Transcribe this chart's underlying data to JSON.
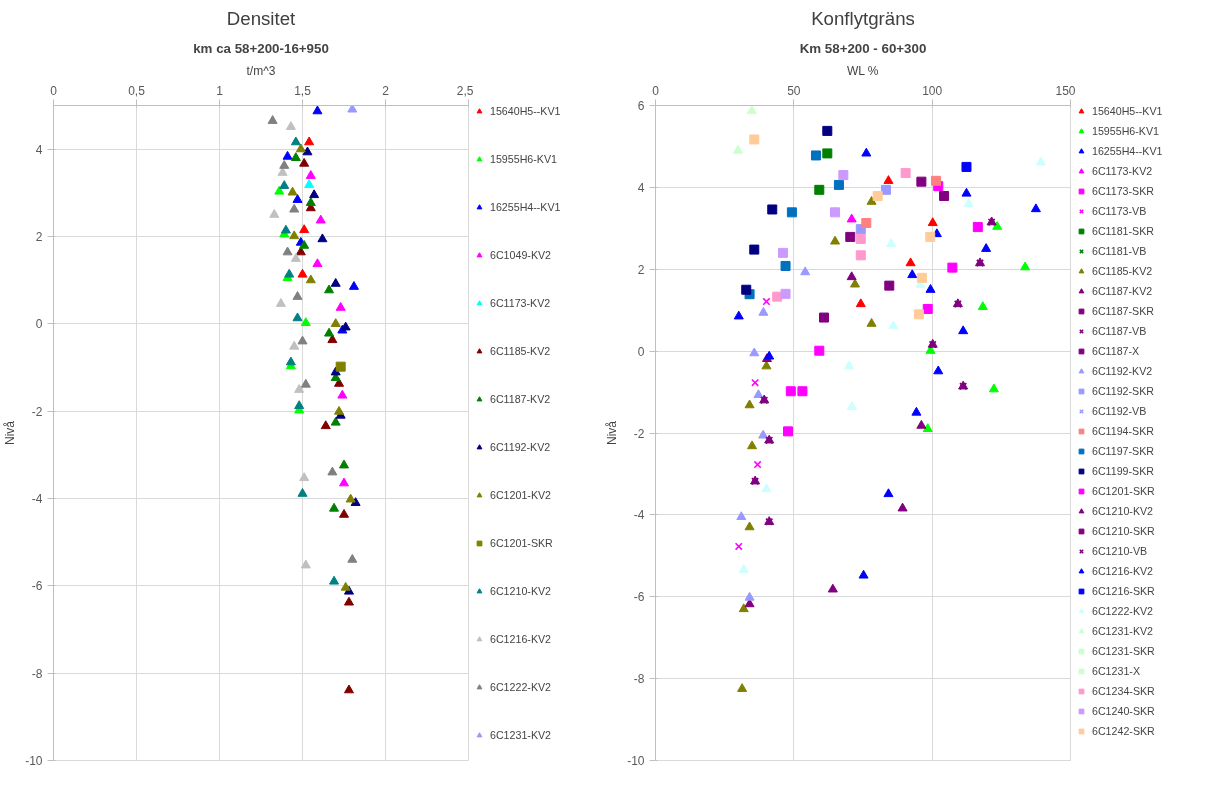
{
  "chart_data": [
    {
      "type": "scatter",
      "title": "Densitet",
      "subtitle": "km ca 58+200-16+950",
      "xlabel": "t/m^3",
      "ylabel": "Nivå",
      "xlim": [
        0,
        2.5
      ],
      "xticks": [
        0,
        {
          "value": 0.5,
          "label": "0,5"
        },
        1,
        {
          "value": 1.5,
          "label": "1,5"
        },
        2,
        {
          "value": 2.5,
          "label": "2,5"
        }
      ],
      "ylim": [
        -10,
        5
      ],
      "yticks": [
        -10,
        -8,
        -6,
        -4,
        -2,
        0,
        2,
        4
      ],
      "grid": true,
      "legend": "right",
      "marker": "triangle",
      "series": [
        {
          "name": "15640H5--KV1",
          "color": "#ff0000",
          "x": [
            1.54,
            1.51,
            1.5
          ],
          "values": [
            4.16,
            2.15,
            1.13
          ]
        },
        {
          "name": "15955H6-KV1",
          "color": "#00ff00",
          "x": [
            1.36,
            1.39,
            1.41,
            1.52,
            1.43,
            1.48
          ],
          "values": [
            3.03,
            2.05,
            1.05,
            0.02,
            -0.97,
            -1.98
          ]
        },
        {
          "name": "16255H4--KV1",
          "color": "#0000ff",
          "x": [
            1.59,
            1.41,
            1.47,
            1.49,
            1.81,
            1.74
          ],
          "values": [
            4.87,
            3.83,
            2.84,
            1.86,
            0.85,
            -0.15
          ]
        },
        {
          "name": "6C1049-KV2",
          "color": "#ff00ff",
          "x": [
            1.55,
            1.61,
            1.59,
            1.73,
            1.74,
            1.75
          ],
          "values": [
            3.39,
            2.37,
            1.37,
            0.37,
            -1.64,
            -3.65
          ]
        },
        {
          "name": "6C1173-KV2",
          "color": "#00ffff",
          "x": [
            1.54
          ],
          "values": [
            3.18
          ]
        },
        {
          "name": "6C1185-KV2",
          "color": "#800000",
          "x": [
            1.51,
            1.55,
            1.49,
            1.68,
            1.72,
            1.64,
            1.75,
            1.78,
            1.78
          ],
          "values": [
            3.67,
            2.65,
            1.64,
            -0.37,
            -1.37,
            -2.34,
            -4.37,
            -6.38,
            -8.39
          ]
        },
        {
          "name": "6C1187-KV2",
          "color": "#008000",
          "x": [
            1.46,
            1.55,
            1.51,
            1.66,
            1.66,
            1.7,
            1.7,
            1.75,
            1.69
          ],
          "values": [
            3.8,
            2.77,
            1.79,
            0.77,
            -0.22,
            -1.24,
            -2.26,
            -3.24,
            -4.23
          ]
        },
        {
          "name": "6C1192-KV2",
          "color": "#000080",
          "x": [
            1.53,
            1.57,
            1.62,
            1.7,
            1.76,
            1.7,
            1.73,
            1.82,
            1.78
          ],
          "values": [
            3.93,
            2.95,
            1.94,
            0.92,
            -0.08,
            -1.11,
            -2.1,
            -4.1,
            -6.13
          ]
        },
        {
          "name": "6C1201-KV2",
          "color": "#808000",
          "x": [
            1.49,
            1.44,
            1.45,
            1.55,
            1.7,
            1.72,
            1.79,
            1.76
          ],
          "values": [
            4.0,
            3.01,
            2.01,
            1.0,
            0.0,
            -2.01,
            -4.02,
            -6.04
          ]
        },
        {
          "name": "6C1201-SKR",
          "color": "#808000",
          "marker": "square",
          "x": [
            1.73
          ],
          "values": [
            -0.98
          ]
        },
        {
          "name": "6C1210-KV2",
          "color": "#008080",
          "x": [
            1.46,
            1.39,
            1.4,
            1.42,
            1.47,
            1.43,
            1.48,
            1.5,
            1.69
          ],
          "values": [
            4.16,
            3.16,
            2.14,
            1.13,
            0.13,
            -0.88,
            -1.88,
            -3.89,
            -5.9
          ]
        },
        {
          "name": "6C1216-KV2",
          "color": "#c0c0c0",
          "x": [
            1.43,
            1.38,
            1.33,
            1.46,
            1.37,
            1.45,
            1.48,
            1.51,
            1.52
          ],
          "values": [
            4.51,
            3.46,
            2.5,
            1.49,
            0.46,
            -0.52,
            -1.51,
            -3.53,
            -5.53
          ]
        },
        {
          "name": "6C1222-KV2",
          "color": "#808080",
          "x": [
            1.32,
            1.39,
            1.45,
            1.41,
            1.47,
            1.5,
            1.52,
            1.68,
            1.8
          ],
          "values": [
            4.65,
            3.62,
            2.62,
            1.64,
            0.62,
            -0.4,
            -1.39,
            -3.4,
            -5.4
          ]
        },
        {
          "name": "6C1231-KV2",
          "color": "#9999ff",
          "x": [
            1.8
          ],
          "values": [
            4.91
          ]
        }
      ]
    },
    {
      "type": "scatter",
      "title": "Konflytgräns",
      "subtitle": "Km 58+200 - 60+300",
      "xlabel": "WL %",
      "ylabel": "Nivå",
      "xlim": [
        0,
        150
      ],
      "xticks": [
        0,
        50,
        100,
        150
      ],
      "ylim": [
        -10,
        6
      ],
      "yticks": [
        -10,
        -8,
        -6,
        -4,
        -2,
        0,
        2,
        4,
        6
      ],
      "grid": true,
      "legend": "right",
      "marker": "triangle",
      "series": [
        {
          "name": "15640H5--KV1",
          "color": "#ff0000",
          "x": [
            84.2,
            100.2,
            92.2,
            74.2
          ],
          "values": [
            4.16,
            3.13,
            2.15,
            1.15
          ]
        },
        {
          "name": "15955H6-KV1",
          "color": "#00ff00",
          "x": [
            123.5,
            133.6,
            118.3,
            99.4,
            122.3,
            98.4
          ],
          "values": [
            3.04,
            2.05,
            1.08,
            0.01,
            -0.93,
            -1.9
          ]
        },
        {
          "name": "16255H4--KV1",
          "color": "#0000ff",
          "x": [
            76.2,
            112.4,
            137.5,
            119.5,
            111.2
          ],
          "values": [
            4.83,
            3.85,
            3.47,
            2.5,
            0.49
          ]
        },
        {
          "name": "6C1173-KV2",
          "color": "#ff00ff",
          "x": [
            70.9
          ],
          "values": [
            3.22
          ]
        },
        {
          "name": "6C1173-SKR",
          "color": "#ff00ff",
          "marker": "square",
          "x": [
            102.2,
            116.5,
            107.3,
            98.4
          ],
          "values": [
            4.03,
            3.03,
            2.04,
            1.03
          ]
        },
        {
          "name": "6C1173-VB",
          "color": "#ff00ff",
          "marker": "cross",
          "x": [
            40.1,
            36.0,
            36.9,
            30.1
          ],
          "values": [
            1.21,
            -0.77,
            -2.77,
            -4.77
          ]
        },
        {
          "name": "6C1181-SKR",
          "color": "#008000",
          "marker": "square",
          "x": [
            62.1,
            59.2
          ],
          "values": [
            4.83,
            3.94
          ]
        },
        {
          "name": "6C1181-VB",
          "color": "#008000",
          "marker": "cross"
        },
        {
          "name": "6C1185-KV2",
          "color": "#808000",
          "x": [
            64.9,
            78.1,
            72.1,
            78.1,
            40.1,
            34.0,
            34.9,
            34.0,
            31.9,
            31.3
          ],
          "values": [
            2.68,
            3.65,
            1.63,
            0.67,
            -0.37,
            -1.32,
            -2.32,
            -4.3,
            -6.3,
            -8.25
          ]
        },
        {
          "name": "6C1187-KV2",
          "color": "#800080",
          "x": [
            70.9,
            40.3,
            96.1,
            89.3,
            64.1,
            34.0
          ],
          "values": [
            1.81,
            -0.19,
            -1.82,
            -3.84,
            -5.82,
            -6.18
          ]
        },
        {
          "name": "6C1187-SKR",
          "color": "#800080",
          "marker": "square",
          "x": [
            70.4,
            60.9
          ],
          "values": [
            2.79,
            0.82
          ]
        },
        {
          "name": "6C1187-VB",
          "color": "#800080",
          "marker": "cross"
        },
        {
          "name": "6C1187-X",
          "color": "#800080",
          "marker": "square",
          "x": [
            84.5
          ],
          "values": [
            1.6
          ]
        },
        {
          "name": "6C1192-KV2",
          "color": "#9999ff",
          "x": [
            54.1,
            39.0,
            35.7,
            37.2,
            38.9,
            31.0,
            34.0
          ],
          "values": [
            1.93,
            0.94,
            -0.05,
            -1.07,
            -2.06,
            -4.05,
            -6.02
          ]
        },
        {
          "name": "6C1192-SKR",
          "color": "#9999ff",
          "marker": "square",
          "x": [
            83.3,
            74.2
          ],
          "values": [
            3.94,
            2.98
          ]
        },
        {
          "name": "6C1192-VB",
          "color": "#9999ff",
          "marker": "cross"
        },
        {
          "name": "6C1194-SKR",
          "color": "#ff8080",
          "marker": "square",
          "x": [
            101.4,
            76.2
          ],
          "values": [
            4.16,
            3.13
          ]
        },
        {
          "name": "6C1197-SKR",
          "color": "#0070c0",
          "marker": "square",
          "x": [
            58.0,
            66.3,
            49.3,
            47.0,
            34.0
          ],
          "values": [
            4.78,
            4.06,
            3.39,
            2.08,
            1.39
          ]
        },
        {
          "name": "6C1199-SKR",
          "color": "#000080",
          "marker": "square",
          "x": [
            62.1,
            42.2,
            35.7,
            32.8
          ],
          "values": [
            5.38,
            3.46,
            2.48,
            1.5
          ]
        },
        {
          "name": "6C1201-SKR",
          "color": "#ff00ff",
          "marker": "square",
          "x": [
            59.2,
            48.9,
            53.1,
            47.9
          ],
          "values": [
            0.01,
            -0.98,
            -0.98,
            -1.96
          ]
        },
        {
          "name": "6C1210-KV2",
          "color": "#800080",
          "x": [
            121.5,
            117.3,
            109.3,
            100.2,
            111.2,
            39.3,
            41.1,
            36.0,
            41.1
          ],
          "values": [
            3.15,
            2.15,
            1.15,
            0.16,
            -0.86,
            -1.2,
            -2.18,
            -3.18,
            -4.17
          ]
        },
        {
          "name": "6C1210-SKR",
          "color": "#800080",
          "marker": "square",
          "x": [
            96.1,
            104.3
          ],
          "values": [
            4.14,
            3.79
          ]
        },
        {
          "name": "6C1210-VB",
          "color": "#800080",
          "marker": "cross",
          "x": [
            121.5,
            117.3,
            109.3,
            100.2,
            111.2,
            39.3,
            41.1,
            36.0,
            41.1
          ],
          "values": [
            3.15,
            2.15,
            1.15,
            0.16,
            -0.86,
            -1.2,
            -2.18,
            -3.18,
            -4.17
          ]
        },
        {
          "name": "6C1216-KV2",
          "color": "#0000ff",
          "x": [
            101.7,
            92.8,
            99.4,
            102.2,
            94.3,
            84.2,
            75.2,
            30.1,
            41.1
          ],
          "values": [
            2.86,
            1.86,
            1.5,
            -0.49,
            -1.5,
            -3.49,
            -5.48,
            0.85,
            -0.13
          ]
        },
        {
          "name": "6C1216-SKR",
          "color": "#0000ff",
          "marker": "square",
          "x": [
            112.4
          ],
          "values": [
            4.5
          ]
        },
        {
          "name": "6C1222-KV2",
          "color": "#ccffff",
          "x": [
            139.3,
            113.2,
            85.2,
            95.8,
            86.0,
            70.0,
            71.0,
            40.1,
            31.9
          ],
          "values": [
            4.61,
            3.6,
            2.62,
            1.62,
            0.61,
            -0.37,
            -1.36,
            -3.37,
            -5.34
          ]
        },
        {
          "name": "6C1231-KV2",
          "color": "#ccffcc",
          "x": [
            34.8,
            29.8
          ],
          "values": [
            5.87,
            4.9
          ]
        },
        {
          "name": "6C1231-SKR",
          "color": "#ccffcc",
          "marker": "square"
        },
        {
          "name": "6C1231-X",
          "color": "#ccffcc",
          "marker": "square"
        },
        {
          "name": "6C1234-SKR",
          "color": "#ff99cc",
          "marker": "square",
          "x": [
            90.4,
            74.2,
            74.2,
            44.0
          ],
          "values": [
            4.35,
            2.74,
            2.34,
            1.33
          ]
        },
        {
          "name": "6C1240-SKR",
          "color": "#cc99ff",
          "marker": "square",
          "x": [
            67.9,
            64.9,
            46.1,
            47.0
          ],
          "values": [
            4.3,
            3.39,
            2.4,
            1.4
          ]
        },
        {
          "name": "6C1242-SKR",
          "color": "#ffcc99",
          "marker": "square",
          "x": [
            35.7,
            80.3,
            99.3,
            96.3,
            95.2
          ],
          "values": [
            5.17,
            3.79,
            2.79,
            1.79,
            0.9
          ]
        }
      ]
    }
  ]
}
